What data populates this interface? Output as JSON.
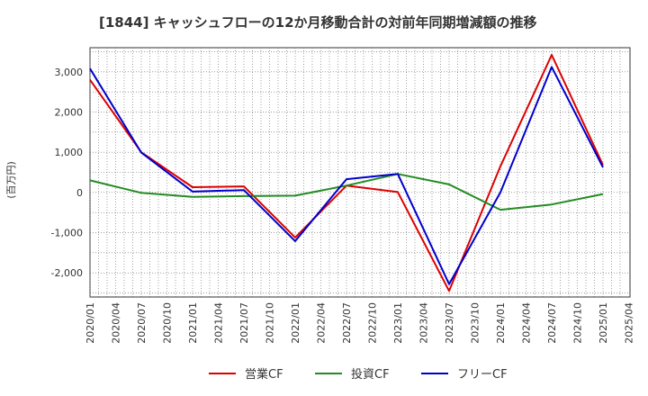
{
  "chart_data": {
    "type": "line",
    "title": "[1844]  キャッシュフローの12か月移動合計の対前年同期増減額の推移",
    "ylabel": "(百万円)",
    "xlabel": "",
    "ylim": [
      -2600,
      3600
    ],
    "yticks": [
      -2000,
      -1000,
      0,
      1000,
      2000,
      3000
    ],
    "ytick_labels": [
      "-2,000",
      "-1,000",
      "0",
      "1,000",
      "2,000",
      "3,000"
    ],
    "x_ticks": [
      "2020/01",
      "2020/04",
      "2020/07",
      "2020/10",
      "2021/01",
      "2021/04",
      "2021/07",
      "2021/10",
      "2022/01",
      "2022/04",
      "2022/07",
      "2022/10",
      "2023/01",
      "2023/04",
      "2023/07",
      "2023/10",
      "2024/01",
      "2024/04",
      "2024/07",
      "2024/10",
      "2025/01",
      "2025/04"
    ],
    "x": [
      "2020/01",
      "2020/07",
      "2021/01",
      "2021/07",
      "2022/01",
      "2022/07",
      "2023/01",
      "2023/07",
      "2024/01",
      "2024/07",
      "2025/01"
    ],
    "grid": true,
    "legend_position": "bottom",
    "series": [
      {
        "name": "営業CF",
        "color": "#dd0000",
        "values": [
          2800,
          1000,
          130,
          150,
          -1120,
          170,
          10,
          -2450,
          650,
          3420,
          680
        ]
      },
      {
        "name": "投資CF",
        "color": "#228b22",
        "values": [
          300,
          -10,
          -110,
          -90,
          -80,
          170,
          460,
          200,
          -430,
          -300,
          -40
        ]
      },
      {
        "name": "フリーCF",
        "color": "#0000cc",
        "values": [
          3080,
          990,
          20,
          60,
          -1210,
          330,
          460,
          -2280,
          0,
          3120,
          620
        ]
      }
    ]
  }
}
